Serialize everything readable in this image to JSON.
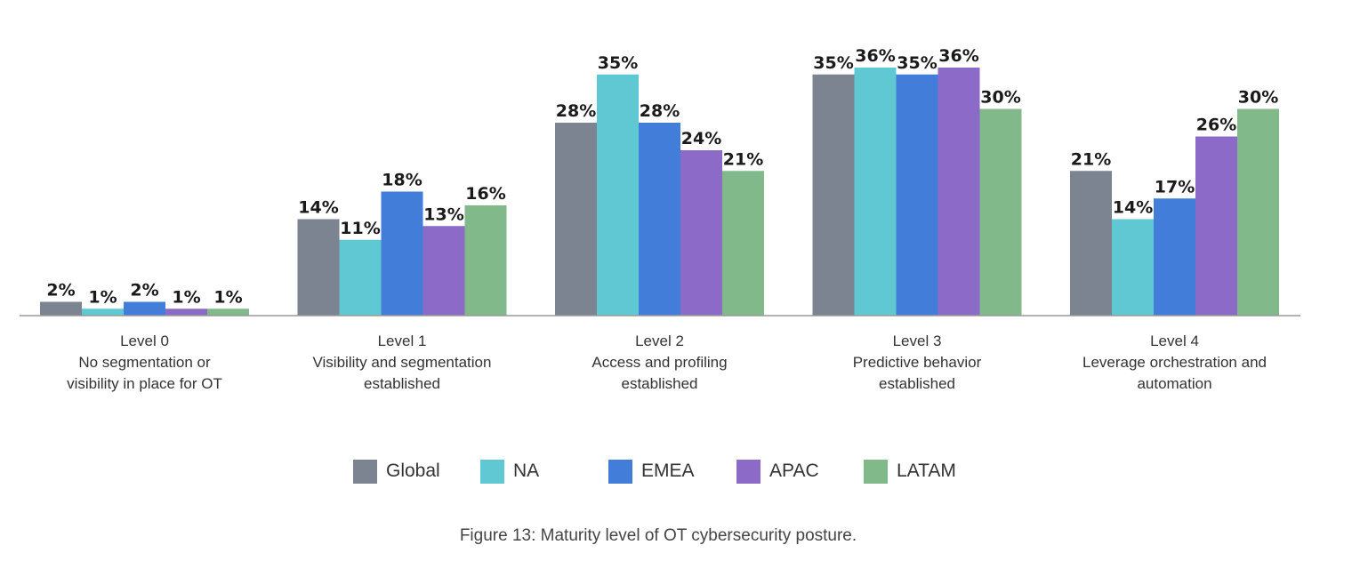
{
  "caption": "Figure 13: Maturity level of OT cybersecurity posture.",
  "chart_data": {
    "type": "bar",
    "categories": [
      [
        "Level 0",
        "No segmentation or",
        "visibility in place for OT"
      ],
      [
        "Level 1",
        "Visibility and segmentation",
        "established"
      ],
      [
        "Level 2",
        "Access and profiling",
        "established"
      ],
      [
        "Level 3",
        "Predictive behavior",
        "established"
      ],
      [
        "Level 4",
        "Leverage orchestration and",
        "automation"
      ]
    ],
    "series": [
      {
        "name": "Global",
        "color": "#7b8490",
        "values": [
          2,
          14,
          28,
          35,
          21
        ]
      },
      {
        "name": "NA",
        "color": "#5fc8d3",
        "values": [
          1,
          11,
          35,
          36,
          14
        ]
      },
      {
        "name": "EMEA",
        "color": "#427ed9",
        "values": [
          2,
          18,
          28,
          35,
          17
        ]
      },
      {
        "name": "APAC",
        "color": "#8c6bc8",
        "values": [
          1,
          13,
          24,
          36,
          26
        ]
      },
      {
        "name": "LATAM",
        "color": "#82b98b",
        "values": [
          1,
          16,
          21,
          30,
          30
        ]
      }
    ],
    "value_suffix": "%",
    "ylim": [
      0,
      36
    ],
    "grid": false,
    "legend_position": "bottom"
  }
}
